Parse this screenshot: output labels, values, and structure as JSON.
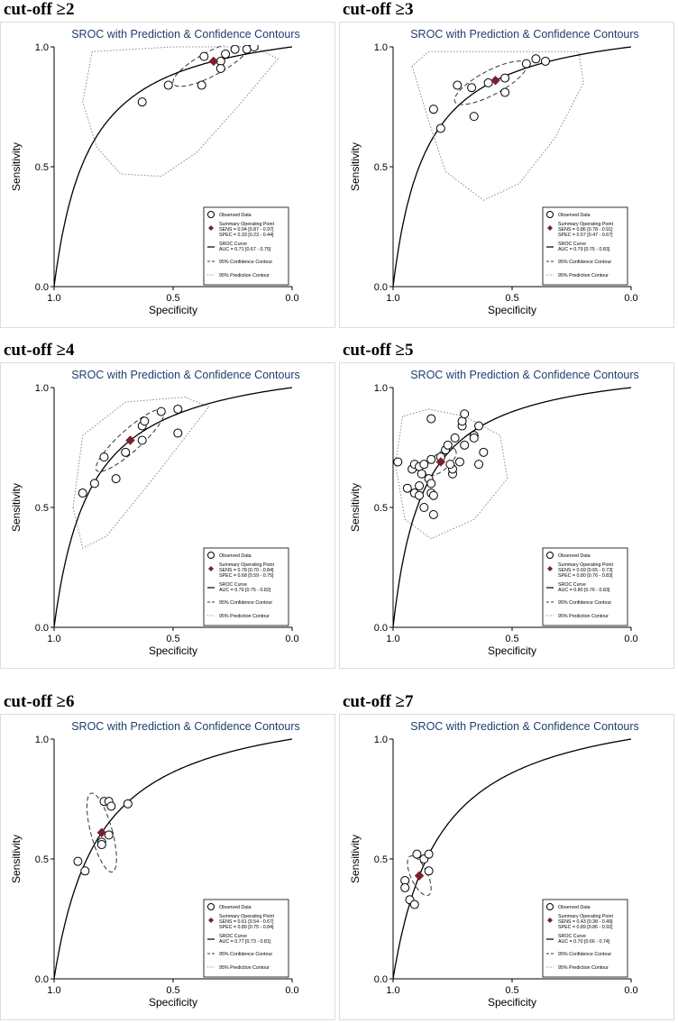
{
  "chart_data": [
    {
      "heading": "cut-off ≥2",
      "type": "scatter",
      "title": "SROC with Prediction & Confidence Contours",
      "xlabel": "Specificity",
      "ylabel": "Sensitivity",
      "xlim": [
        1.0,
        0.0
      ],
      "ylim": [
        0.0,
        1.0
      ],
      "x_ticks": [
        "1.0",
        "0.5",
        "0.0"
      ],
      "y_ticks": [
        "0.0",
        "0.5",
        "1.0"
      ],
      "observed": [
        [
          0.63,
          0.77
        ],
        [
          0.52,
          0.84
        ],
        [
          0.38,
          0.84
        ],
        [
          0.37,
          0.96
        ],
        [
          0.3,
          0.94
        ],
        [
          0.3,
          0.91
        ],
        [
          0.28,
          0.97
        ],
        [
          0.24,
          0.99
        ],
        [
          0.19,
          0.99
        ],
        [
          0.16,
          1.0
        ]
      ],
      "summary_point": {
        "spec": 0.33,
        "sens": 0.94
      },
      "sroc_auc": 0.71,
      "legend": {
        "observed": "Observed Data",
        "summary_title": "Summary Operating Point",
        "summary_sens": "SENS = 0.94 [0.87 - 0.97]",
        "summary_spec": "SPEC = 0.33 [0.23 - 0.44]",
        "sroc_title": "SROC Curve",
        "sroc_auc": "AUC = 0.71 [0.67 - 0.75]",
        "confidence": "95% Confidence Contour",
        "prediction": "95% Prediction Contour"
      }
    },
    {
      "heading": "cut-off ≥3",
      "type": "scatter",
      "title": "SROC with Prediction & Confidence Contours",
      "xlabel": "Specificity",
      "ylabel": "Sensitivity",
      "xlim": [
        1.0,
        0.0
      ],
      "ylim": [
        0.0,
        1.0
      ],
      "x_ticks": [
        "1.0",
        "0.5",
        "0.0"
      ],
      "y_ticks": [
        "0.0",
        "0.5",
        "1.0"
      ],
      "observed": [
        [
          0.83,
          0.74
        ],
        [
          0.8,
          0.66
        ],
        [
          0.73,
          0.84
        ],
        [
          0.67,
          0.83
        ],
        [
          0.66,
          0.71
        ],
        [
          0.6,
          0.85
        ],
        [
          0.53,
          0.87
        ],
        [
          0.53,
          0.81
        ],
        [
          0.44,
          0.93
        ],
        [
          0.4,
          0.95
        ],
        [
          0.36,
          0.94
        ]
      ],
      "summary_point": {
        "spec": 0.57,
        "sens": 0.86
      },
      "sroc_auc": 0.79,
      "legend": {
        "observed": "Observed Data",
        "summary_title": "Summary Operating Point",
        "summary_sens": "SENS = 0.86 [0.78 - 0.91]",
        "summary_spec": "SPEC = 0.57 [0.47 - 0.67]",
        "sroc_title": "SROC Curve",
        "sroc_auc": "AUC = 0.79 [0.75 - 0.83]",
        "confidence": "95% Confidence Contour",
        "prediction": "95% Prediction Contour"
      }
    },
    {
      "heading": "cut-off ≥4",
      "type": "scatter",
      "title": "SROC with Prediction & Confidence Contours",
      "xlabel": "Specificity",
      "ylabel": "Sensitivity",
      "xlim": [
        1.0,
        0.0
      ],
      "ylim": [
        0.0,
        1.0
      ],
      "x_ticks": [
        "1.0",
        "0.5",
        "0.0"
      ],
      "y_ticks": [
        "0.0",
        "0.5",
        "1.0"
      ],
      "observed": [
        [
          0.88,
          0.56
        ],
        [
          0.83,
          0.6
        ],
        [
          0.79,
          0.71
        ],
        [
          0.74,
          0.62
        ],
        [
          0.7,
          0.73
        ],
        [
          0.63,
          0.78
        ],
        [
          0.63,
          0.84
        ],
        [
          0.62,
          0.86
        ],
        [
          0.55,
          0.9
        ],
        [
          0.48,
          0.91
        ],
        [
          0.48,
          0.81
        ]
      ],
      "summary_point": {
        "spec": 0.68,
        "sens": 0.78
      },
      "sroc_auc": 0.79,
      "legend": {
        "observed": "Observed Data",
        "summary_title": "Summary Operating Point",
        "summary_sens": "SENS = 0.78 [0.70 - 0.84]",
        "summary_spec": "SPEC = 0.68 [0.59 - 0.75]",
        "sroc_title": "SROC Curve",
        "sroc_auc": "AUC = 0.79 [0.75 - 0.82]",
        "confidence": "95% Confidence Contour",
        "prediction": "95% Prediction Contour"
      }
    },
    {
      "heading": "cut-off ≥5",
      "type": "scatter",
      "title": "SROC with Prediction & Confidence Contours",
      "xlabel": "Specificity",
      "ylabel": "Sensitivity",
      "xlim": [
        1.0,
        0.0
      ],
      "ylim": [
        0.0,
        1.0
      ],
      "x_ticks": [
        "1.0",
        "0.5",
        "0.0"
      ],
      "y_ticks": [
        "0.0",
        "0.5",
        "1.0"
      ],
      "observed": [
        [
          0.98,
          0.69
        ],
        [
          0.94,
          0.58
        ],
        [
          0.92,
          0.66
        ],
        [
          0.91,
          0.56
        ],
        [
          0.91,
          0.68
        ],
        [
          0.89,
          0.67
        ],
        [
          0.89,
          0.55
        ],
        [
          0.89,
          0.59
        ],
        [
          0.88,
          0.64
        ],
        [
          0.87,
          0.5
        ],
        [
          0.87,
          0.68
        ],
        [
          0.85,
          0.62
        ],
        [
          0.84,
          0.87
        ],
        [
          0.84,
          0.56
        ],
        [
          0.84,
          0.6
        ],
        [
          0.84,
          0.7
        ],
        [
          0.83,
          0.55
        ],
        [
          0.83,
          0.47
        ],
        [
          0.8,
          0.71
        ],
        [
          0.78,
          0.74
        ],
        [
          0.77,
          0.76
        ],
        [
          0.75,
          0.64
        ],
        [
          0.75,
          0.66
        ],
        [
          0.76,
          0.68
        ],
        [
          0.74,
          0.79
        ],
        [
          0.72,
          0.69
        ],
        [
          0.71,
          0.84
        ],
        [
          0.71,
          0.86
        ],
        [
          0.7,
          0.89
        ],
        [
          0.7,
          0.76
        ],
        [
          0.66,
          0.8
        ],
        [
          0.66,
          0.79
        ],
        [
          0.64,
          0.84
        ],
        [
          0.64,
          0.68
        ],
        [
          0.62,
          0.73
        ]
      ],
      "summary_point": {
        "spec": 0.8,
        "sens": 0.69
      },
      "sroc_auc": 0.8,
      "legend": {
        "observed": "Observed Data",
        "summary_title": "Summary Operating Point",
        "summary_sens": "SENS = 0.69 [0.65 - 0.73]",
        "summary_spec": "SPEC = 0.80 [0.76 - 0.83]",
        "sroc_title": "SROC Curve",
        "sroc_auc": "AUC = 0.80 [0.76 - 0.83]",
        "confidence": "95% Confidence Contour",
        "prediction": "95% Prediction Contour"
      }
    },
    {
      "heading": "cut-off ≥6",
      "type": "scatter",
      "title": "SROC with Prediction & Confidence Contours",
      "xlabel": "Specificity",
      "ylabel": "Sensitivity",
      "xlim": [
        1.0,
        0.0
      ],
      "ylim": [
        0.0,
        1.0
      ],
      "x_ticks": [
        "1.0",
        "0.5",
        "0.0"
      ],
      "y_ticks": [
        "0.0",
        "0.5",
        "1.0"
      ],
      "observed": [
        [
          0.9,
          0.49
        ],
        [
          0.87,
          0.45
        ],
        [
          0.79,
          0.74
        ],
        [
          0.77,
          0.74
        ],
        [
          0.76,
          0.72
        ],
        [
          0.8,
          0.57
        ],
        [
          0.8,
          0.56
        ],
        [
          0.77,
          0.6
        ],
        [
          0.69,
          0.73
        ]
      ],
      "summary_point": {
        "spec": 0.8,
        "sens": 0.61
      },
      "sroc_auc": 0.77,
      "legend": {
        "observed": "Observed Data",
        "summary_title": "Summary Operating Point",
        "summary_sens": "SENS = 0.61 [0.54 - 0.67]",
        "summary_spec": "SPEC = 0.80 [0.75 - 0.84]",
        "sroc_title": "SROC Curve",
        "sroc_auc": "AUC = 0.77 [0.73 - 0.81]",
        "confidence": "95% Confidence Contour",
        "prediction": "95% Prediction Contour"
      }
    },
    {
      "heading": "cut-off ≥7",
      "type": "scatter",
      "title": "SROC with Prediction & Confidence Contours",
      "xlabel": "Specificity",
      "ylabel": "Sensitivity",
      "xlim": [
        1.0,
        0.0
      ],
      "ylim": [
        0.0,
        1.0
      ],
      "x_ticks": [
        "1.0",
        "0.5",
        "0.0"
      ],
      "y_ticks": [
        "0.0",
        "0.5",
        "1.0"
      ],
      "observed": [
        [
          0.95,
          0.41
        ],
        [
          0.95,
          0.38
        ],
        [
          0.93,
          0.33
        ],
        [
          0.91,
          0.31
        ],
        [
          0.9,
          0.52
        ],
        [
          0.87,
          0.5
        ],
        [
          0.85,
          0.45
        ],
        [
          0.85,
          0.52
        ]
      ],
      "summary_point": {
        "spec": 0.89,
        "sens": 0.43
      },
      "sroc_auc": 0.7,
      "legend": {
        "observed": "Observed Data",
        "summary_title": "Summary Operating Point",
        "summary_sens": "SENS = 0.43 [0.38 - 0.49]",
        "summary_spec": "SPEC = 0.89 [0.86 - 0.92]",
        "sroc_title": "SROC Curve",
        "sroc_auc": "AUC = 0.70 [0.66 - 0.74]",
        "confidence": "95% Confidence Contour",
        "prediction": "95% Prediction Contour"
      }
    }
  ]
}
